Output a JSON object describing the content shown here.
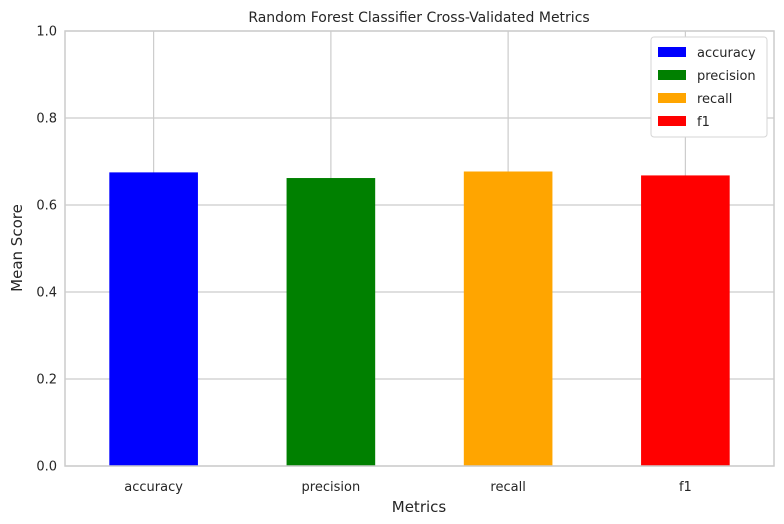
{
  "chart_data": {
    "type": "bar",
    "title": "Random Forest Classifier Cross-Validated Metrics",
    "xlabel": "Metrics",
    "ylabel": "Mean Score",
    "categories": [
      "accuracy",
      "precision",
      "recall",
      "f1"
    ],
    "values": [
      0.675,
      0.662,
      0.677,
      0.668
    ],
    "colors": [
      "#0000ff",
      "#008000",
      "#ffa500",
      "#ff0000"
    ],
    "ylim": [
      0,
      1
    ],
    "yticks": [
      "0.0",
      "0.2",
      "0.4",
      "0.6",
      "0.8",
      "1.0"
    ],
    "grid": true,
    "legend": {
      "placement": "top-right",
      "entries": [
        "accuracy",
        "precision",
        "recall",
        "f1"
      ]
    }
  }
}
